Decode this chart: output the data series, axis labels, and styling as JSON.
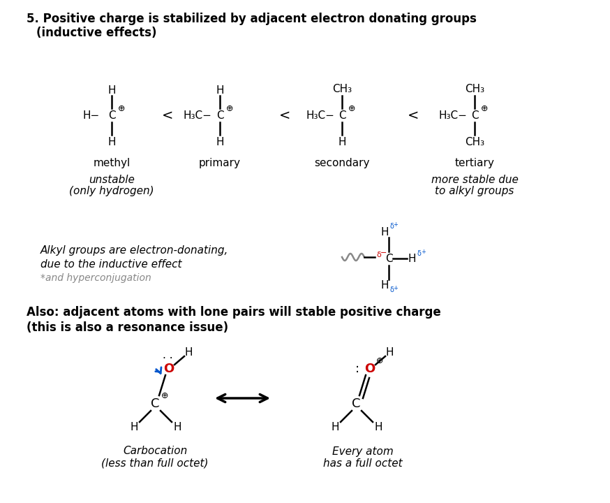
{
  "bg_color": "#ffffff",
  "red_color": "#cc0000",
  "blue_color": "#0055cc",
  "black_color": "#000000",
  "gray_color": "#888888",
  "labels_row1": [
    "methyl",
    "primary",
    "secondary",
    "tertiary"
  ]
}
